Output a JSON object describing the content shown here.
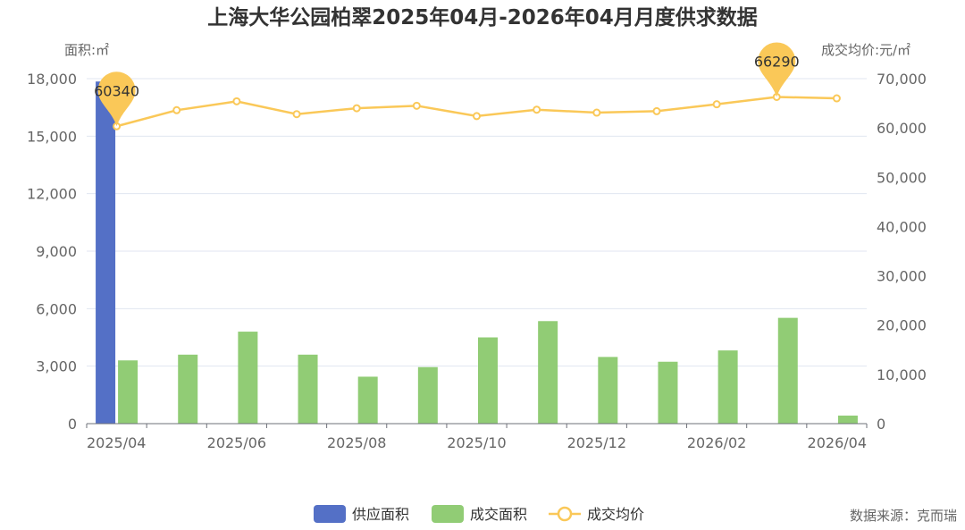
{
  "chart_data": {
    "type": "bar",
    "title": "上海大华公园柏翠2025年04月-2026年04月月度供求数据",
    "left_axis_name": "面积:㎡",
    "right_axis_name": "成交均价:元/㎡",
    "ylim_left": [
      0,
      18000
    ],
    "ylim_right": [
      0,
      70000
    ],
    "yticks_left": [
      "0",
      "3,000",
      "6,000",
      "9,000",
      "12,000",
      "15,000",
      "18,000"
    ],
    "yticks_right": [
      "0",
      "10,000",
      "20,000",
      "30,000",
      "40,000",
      "50,000",
      "60,000",
      "70,000"
    ],
    "categories": [
      "2025/04",
      "2025/05",
      "2025/06",
      "2025/07",
      "2025/08",
      "2025/09",
      "2025/10",
      "2025/11",
      "2025/12",
      "2026/01",
      "2026/02",
      "2026/03",
      "2026/04"
    ],
    "xtick_labels": [
      "2025/04",
      "",
      "2025/06",
      "",
      "2025/08",
      "",
      "2025/10",
      "",
      "2025/12",
      "",
      "2026/02",
      "",
      "2026/04"
    ],
    "grid": true,
    "legend_position": "bottom-center",
    "series": [
      {
        "name": "供应面积",
        "type": "bar",
        "axis": "left",
        "color": "#5470c6",
        "values": [
          17850,
          0,
          0,
          0,
          0,
          0,
          0,
          0,
          0,
          0,
          0,
          0,
          0
        ]
      },
      {
        "name": "成交面积",
        "type": "bar",
        "axis": "left",
        "color": "#91cc75",
        "values": [
          3300,
          3600,
          4800,
          3600,
          2450,
          2950,
          4500,
          5350,
          3480,
          3230,
          3820,
          5520,
          420
        ]
      },
      {
        "name": "成交均价",
        "type": "line",
        "axis": "right",
        "color": "#fac858",
        "values": [
          60340,
          63600,
          65400,
          62800,
          64000,
          64500,
          62400,
          63700,
          63100,
          63400,
          64800,
          66290,
          66000
        ]
      }
    ],
    "annotations": [
      {
        "series": "成交均价",
        "index": 0,
        "label": "60340"
      },
      {
        "series": "成交均价",
        "index": 11,
        "label": "66290"
      }
    ]
  },
  "source_text": "数据来源：克而瑞"
}
